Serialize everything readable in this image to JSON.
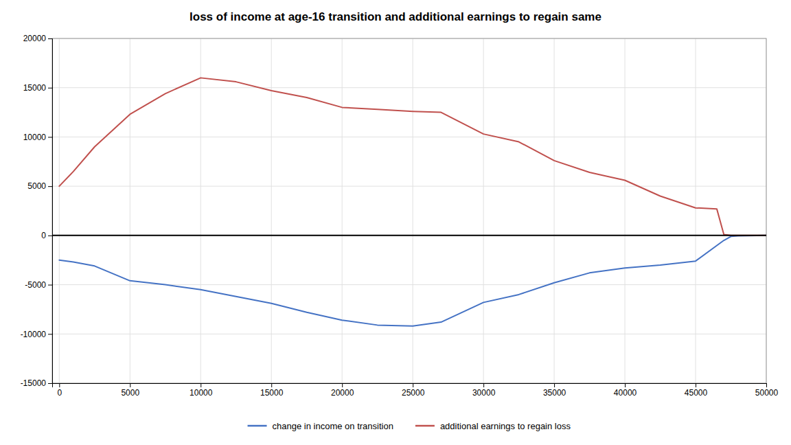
{
  "chart_data": {
    "type": "line",
    "title": "loss of income at age-16 transition and additional earnings to regain same",
    "xlim": [
      -500,
      50000
    ],
    "ylim": [
      -15000,
      20000
    ],
    "xticks": [
      0,
      5000,
      10000,
      15000,
      20000,
      25000,
      30000,
      35000,
      40000,
      45000,
      50000
    ],
    "yticks": [
      -15000,
      -10000,
      -5000,
      0,
      5000,
      10000,
      15000,
      20000
    ],
    "grid": true,
    "legend": "bottom",
    "series": [
      {
        "name": "change in income on transition",
        "color": "#4472c4",
        "x": [
          0,
          1000,
          2500,
          5000,
          7500,
          10000,
          12500,
          15000,
          17500,
          20000,
          22500,
          25000,
          27000,
          30000,
          32500,
          35000,
          37500,
          40000,
          42500,
          45000,
          47000,
          47500,
          48000,
          50000
        ],
        "values": [
          -2500,
          -2700,
          -3100,
          -4600,
          -5000,
          -5500,
          -6200,
          -6900,
          -7800,
          -8600,
          -9100,
          -9200,
          -8800,
          -6800,
          -6000,
          -4800,
          -3800,
          -3300,
          -3000,
          -2600,
          -500,
          -100,
          -50,
          0
        ]
      },
      {
        "name": "additional earnings to regain loss",
        "color": "#c0504d",
        "x": [
          0,
          1000,
          2500,
          5000,
          7500,
          10000,
          12500,
          15000,
          17500,
          20000,
          22500,
          25000,
          27000,
          30000,
          32500,
          35000,
          37500,
          40000,
          42500,
          45000,
          46500,
          47000,
          47500,
          48000,
          50000
        ],
        "values": [
          5000,
          6500,
          9000,
          12300,
          14400,
          16000,
          15600,
          14700,
          14000,
          13000,
          12800,
          12600,
          12500,
          10300,
          9500,
          7600,
          6400,
          5600,
          4000,
          2800,
          2700,
          100,
          0,
          0,
          0
        ]
      }
    ]
  }
}
